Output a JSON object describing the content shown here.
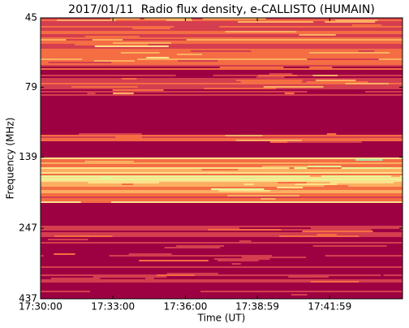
{
  "chart_data": {
    "type": "spectrogram",
    "title": "2017/01/11  Radio flux density, e-CALLISTO (HUMAIN)",
    "x_label": "Time (UT)",
    "y_label": "Frequency (MHz)",
    "xlim": [
      "17:30:00",
      "17:45:00"
    ],
    "xticks": [
      "17:30:00",
      "17:33:00",
      "17:36:00",
      "17:38:59",
      "17:41:59"
    ],
    "ylim": [
      45,
      437
    ],
    "yticks": [
      45,
      79,
      139,
      247,
      437
    ],
    "y_log": true,
    "y_inverted": true
  }
}
